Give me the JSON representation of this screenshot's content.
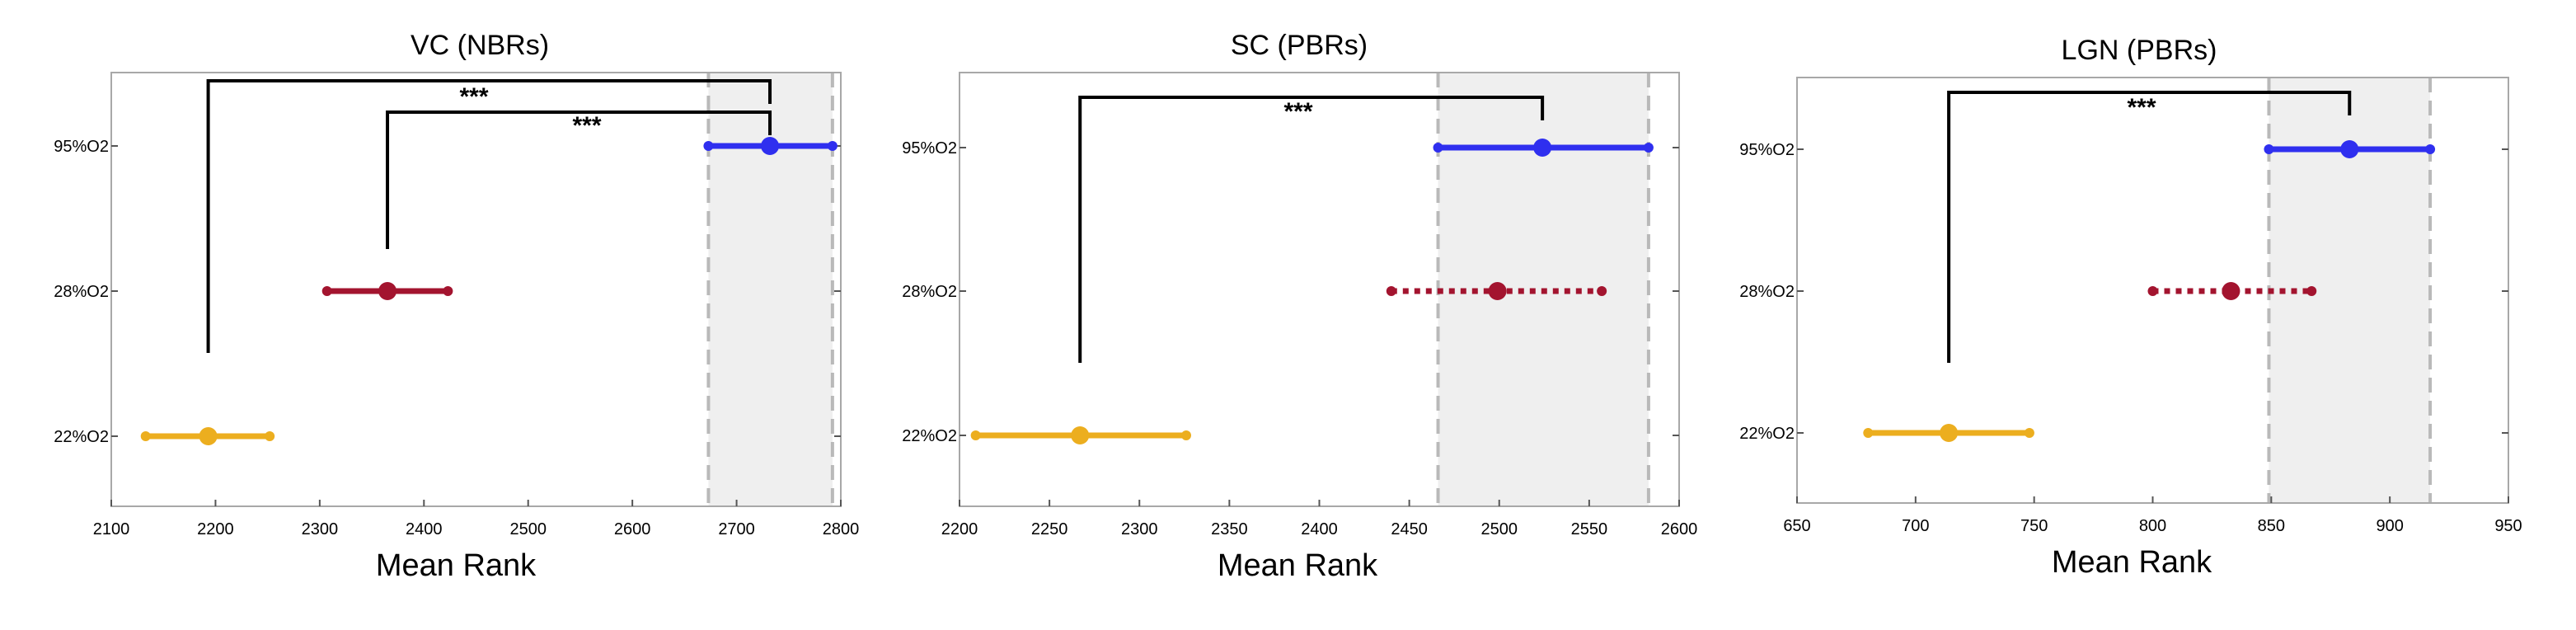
{
  "chart_data": [
    {
      "type": "interval",
      "title": "VC (NBRs)",
      "xlabel": "Mean Rank",
      "xlim": [
        2100,
        2800
      ],
      "xticks": [
        2100,
        2200,
        2300,
        2400,
        2500,
        2600,
        2700,
        2800
      ],
      "categories": [
        "22%O2",
        "28%O2",
        "95%O2"
      ],
      "series": [
        {
          "category": "22%O2",
          "mean": 2193,
          "low": 2133,
          "high": 2252,
          "color": "#ecae1f",
          "style": "solid"
        },
        {
          "category": "28%O2",
          "mean": 2365,
          "low": 2307,
          "high": 2423,
          "color": "#a3142f",
          "style": "solid"
        },
        {
          "category": "95%O2",
          "mean": 2732,
          "low": 2673,
          "high": 2792,
          "color": "#2f2fef",
          "style": "solid"
        }
      ],
      "highlight_band": [
        2673,
        2792
      ],
      "significance": [
        {
          "from": "22%O2",
          "to": "95%O2",
          "label": "***"
        },
        {
          "from": "28%O2",
          "to": "95%O2",
          "label": "***"
        }
      ]
    },
    {
      "type": "interval",
      "title": "SC (PBRs)",
      "xlabel": "Mean Rank",
      "xlim": [
        2200,
        2600
      ],
      "xticks": [
        2200,
        2250,
        2300,
        2350,
        2400,
        2450,
        2500,
        2550,
        2600
      ],
      "categories": [
        "22%O2",
        "28%O2",
        "95%O2"
      ],
      "series": [
        {
          "category": "22%O2",
          "mean": 2267,
          "low": 2209,
          "high": 2326,
          "color": "#ecae1f",
          "style": "solid"
        },
        {
          "category": "28%O2",
          "mean": 2499,
          "low": 2440,
          "high": 2557,
          "color": "#a3142f",
          "style": "dotted"
        },
        {
          "category": "95%O2",
          "mean": 2524,
          "low": 2466,
          "high": 2583,
          "color": "#2f2fef",
          "style": "solid"
        }
      ],
      "highlight_band": [
        2466,
        2583
      ],
      "significance": [
        {
          "from": "22%O2",
          "to": "95%O2",
          "label": "***"
        }
      ]
    },
    {
      "type": "interval",
      "title": "LGN (PBRs)",
      "xlabel": "Mean Rank",
      "xlim": [
        650,
        950
      ],
      "xticks": [
        650,
        700,
        750,
        800,
        850,
        900,
        950
      ],
      "categories": [
        "22%O2",
        "28%O2",
        "95%O2"
      ],
      "series": [
        {
          "category": "22%O2",
          "mean": 714,
          "low": 680,
          "high": 748,
          "color": "#ecae1f",
          "style": "solid"
        },
        {
          "category": "28%O2",
          "mean": 833,
          "low": 800,
          "high": 867,
          "color": "#a3142f",
          "style": "dotted"
        },
        {
          "category": "95%O2",
          "mean": 883,
          "low": 849,
          "high": 917,
          "color": "#2f2fef",
          "style": "solid"
        }
      ],
      "highlight_band": [
        849,
        917
      ],
      "significance": [
        {
          "from": "22%O2",
          "to": "95%O2",
          "label": "***"
        }
      ]
    }
  ]
}
